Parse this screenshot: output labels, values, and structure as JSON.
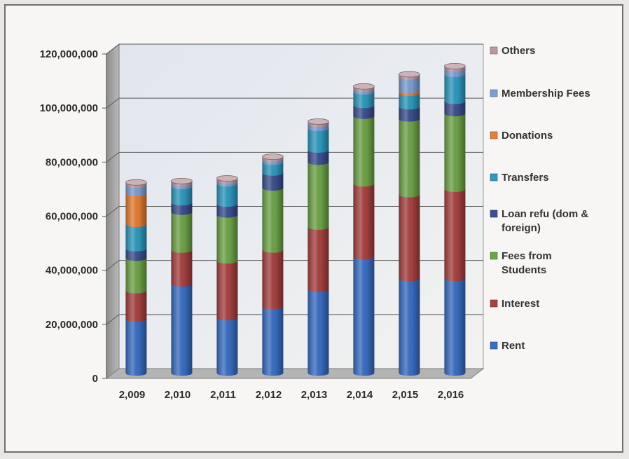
{
  "chart_data": {
    "type": "bar",
    "stacked": true,
    "style": "3d-cylinder",
    "title": "",
    "xlabel": "",
    "ylabel": "",
    "categories": [
      "2,009",
      "2,010",
      "2,011",
      "2,012",
      "2,013",
      "2,014",
      "2,015",
      "2,016"
    ],
    "ylim": [
      0,
      120000000
    ],
    "y_ticks": [
      "0",
      "20,000,000",
      "40,000,000",
      "60,000,000",
      "80,000,000",
      "100,000,000",
      "120,000,000"
    ],
    "grid": true,
    "legend_position": "right",
    "series": [
      {
        "name": "Rent",
        "color": "#3a6fc4",
        "values": [
          20000000,
          33000000,
          20500000,
          24500000,
          31000000,
          43000000,
          35000000,
          35000000
        ]
      },
      {
        "name": "Interest",
        "color": "#a84241",
        "values": [
          10500000,
          12500000,
          21000000,
          21000000,
          23000000,
          27000000,
          31000000,
          33000000
        ]
      },
      {
        "name": "Fees from\nStudents",
        "color": "#6fa549",
        "values": [
          12000000,
          14000000,
          17000000,
          23000000,
          24000000,
          25000000,
          28000000,
          28000000
        ]
      },
      {
        "name": "Loan refu (dom &\nforeign)",
        "color": "#3d4f8f",
        "values": [
          3500000,
          3500000,
          4000000,
          5500000,
          4500000,
          4000000,
          4500000,
          4500000
        ]
      },
      {
        "name": "Transfers",
        "color": "#2f9ac0",
        "values": [
          9000000,
          6000000,
          7500000,
          4000000,
          8000000,
          5000000,
          5000000,
          10000000
        ]
      },
      {
        "name": "Donations",
        "color": "#e47f34",
        "values": [
          11500000,
          0,
          0,
          0,
          0,
          0,
          1000000,
          0
        ]
      },
      {
        "name": "Membership Fees",
        "color": "#7d9fd4",
        "values": [
          3000000,
          1000000,
          1000000,
          1000000,
          1500000,
          1000000,
          5000000,
          2000000
        ]
      },
      {
        "name": "Others",
        "color": "#b99aa0",
        "values": [
          1000000,
          1000000,
          1000000,
          1000000,
          1000000,
          1000000,
          1000000,
          1000000
        ]
      }
    ]
  }
}
